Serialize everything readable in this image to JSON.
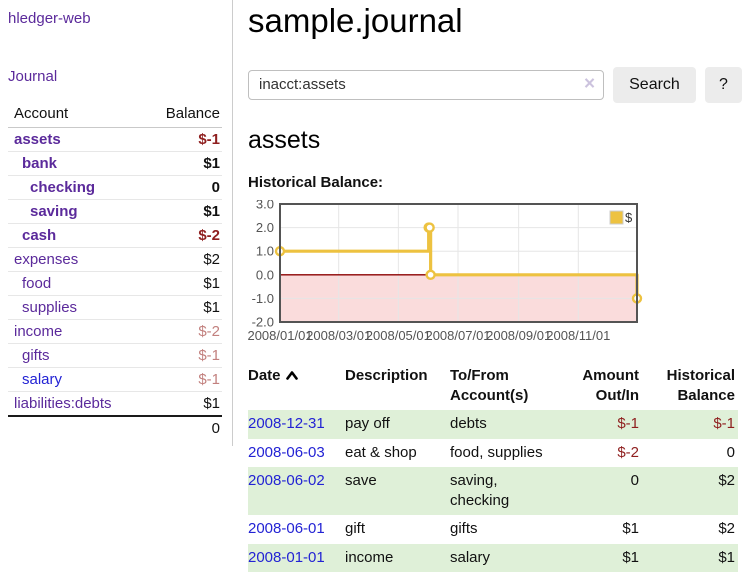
{
  "app": {
    "title": "hledger-web"
  },
  "colors": {
    "accent_purple": "#5b2a9b",
    "link_blue": "#2323d4",
    "negative_red": "#8f1f1f",
    "negative_light": "#c2807e",
    "row_stripe_green": "#dff0d8",
    "chart_gold": "#edc240",
    "chart_negative_bg": "#fadcdc",
    "chart_zero_line": "#8b0000"
  },
  "sidebar": {
    "journal_link": "Journal",
    "headers": {
      "account": "Account",
      "balance": "Balance"
    },
    "accounts": [
      {
        "name": "assets",
        "depth": 0,
        "bold": true,
        "balance": "$-1",
        "balance_class": "neg-strong"
      },
      {
        "name": "bank",
        "depth": 1,
        "bold": true,
        "balance": "$1",
        "balance_class": ""
      },
      {
        "name": "checking",
        "depth": 2,
        "bold": true,
        "balance": "0",
        "balance_class": ""
      },
      {
        "name": "saving",
        "depth": 2,
        "bold": true,
        "balance": "$1",
        "balance_class": ""
      },
      {
        "name": "cash",
        "depth": 1,
        "bold": true,
        "balance": "$-2",
        "balance_class": "neg-strong"
      },
      {
        "name": "expenses",
        "depth": 0,
        "bold": false,
        "balance": "$2",
        "balance_class": ""
      },
      {
        "name": "food",
        "depth": 1,
        "bold": false,
        "balance": "$1",
        "balance_class": ""
      },
      {
        "name": "supplies",
        "depth": 1,
        "bold": false,
        "balance": "$1",
        "balance_class": ""
      },
      {
        "name": "income",
        "depth": 0,
        "bold": false,
        "balance": "$-2",
        "balance_class": "neg-light"
      },
      {
        "name": "gifts",
        "depth": 1,
        "bold": false,
        "balance": "$-1",
        "balance_class": "neg-light"
      },
      {
        "name": "salary",
        "depth": 1,
        "bold": false,
        "balance": "$-1",
        "balance_class": "neg-light",
        "link_blue": true
      },
      {
        "name": "liabilities:debts",
        "depth": 0,
        "bold": false,
        "balance": "$1",
        "balance_class": ""
      }
    ],
    "total": "0"
  },
  "header": {
    "title": "sample.journal"
  },
  "search": {
    "value": "inacct:assets",
    "clear_icon": "×",
    "button_label": "Search",
    "help_label": "?"
  },
  "register": {
    "heading": "assets",
    "chart_label": "Historical Balance:",
    "table": {
      "headers": [
        "Date",
        "Description",
        "To/From Account(s)",
        "Amount Out/In",
        "Historical Balance"
      ],
      "rows": [
        {
          "date": "2008-12-31",
          "description": "pay off",
          "accounts": "debts",
          "amount": "$-1",
          "amount_neg": true,
          "balance": "$-1",
          "balance_neg": true
        },
        {
          "date": "2008-06-03",
          "description": "eat & shop",
          "accounts": "food, supplies",
          "amount": "$-2",
          "amount_neg": true,
          "balance": "0",
          "balance_neg": false
        },
        {
          "date": "2008-06-02",
          "description": "save",
          "accounts": "saving, checking",
          "amount": "0",
          "amount_neg": false,
          "balance": "$2",
          "balance_neg": false
        },
        {
          "date": "2008-06-01",
          "description": "gift",
          "accounts": "gifts",
          "amount": "$1",
          "amount_neg": false,
          "balance": "$2",
          "balance_neg": false
        },
        {
          "date": "2008-01-01",
          "description": "income",
          "accounts": "salary",
          "amount": "$1",
          "amount_neg": false,
          "balance": "$1",
          "balance_neg": false
        }
      ]
    }
  },
  "chart_data": {
    "type": "line",
    "title": "Historical Balance",
    "step": true,
    "series": [
      {
        "name": "$",
        "color": "#edc240",
        "points": [
          [
            "2008-01-01",
            1
          ],
          [
            "2008-06-01",
            2
          ],
          [
            "2008-06-02",
            2
          ],
          [
            "2008-06-03",
            0
          ],
          [
            "2008-12-31",
            -1
          ]
        ]
      }
    ],
    "xlim": [
      "2008-01-01",
      "2008-12-31"
    ],
    "ylim": [
      -2,
      3
    ],
    "y_ticks": [
      "3.0",
      "2.0",
      "1.0",
      "0.0",
      "-1.0",
      "-2.0"
    ],
    "x_ticks": [
      "2008/01/01",
      "2008/03/01",
      "2008/05/01",
      "2008/07/01",
      "2008/09/01",
      "2008/11/01"
    ],
    "legend": "$",
    "legend_position": "top-right",
    "grid": true,
    "negative_region_color": "#fadcdc",
    "zero_line_color": "#8b0000"
  }
}
